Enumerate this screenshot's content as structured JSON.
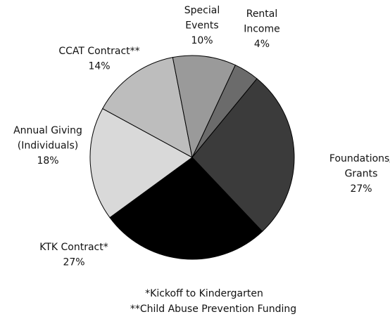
{
  "chart_data": {
    "type": "pie",
    "categories": [
      [
        "Rental",
        "Income"
      ],
      [
        "Foundations/",
        "Grants"
      ],
      [
        "KTK Contract*"
      ],
      [
        "Annual Giving",
        "(Individuals)"
      ],
      [
        "CCAT Contract**"
      ],
      [
        "Special",
        "Events"
      ]
    ],
    "values": [
      4,
      27,
      27,
      18,
      14,
      10
    ],
    "value_labels": [
      "4%",
      "27%",
      "27%",
      "18%",
      "14%",
      "10%"
    ],
    "colors": [
      "#6b6b6b",
      "#3b3b3b",
      "#000000",
      "#d9d9d9",
      "#bdbdbd",
      "#9a9a9a"
    ],
    "notes": [
      "*Kickoff to Kindergarten",
      "**Child Abuse Prevention Funding"
    ]
  }
}
